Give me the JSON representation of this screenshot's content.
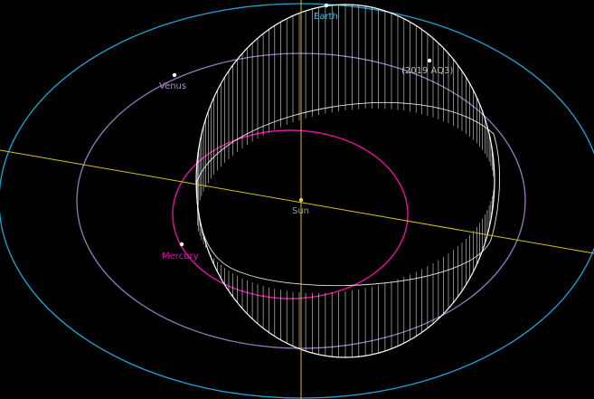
{
  "bodies": {
    "earth": {
      "label": "Earth",
      "color": "#5bb5e0"
    },
    "venus": {
      "label": "Venus",
      "color": "#b08ccf"
    },
    "mercury": {
      "label": "Mercury",
      "color": "#e0139b"
    },
    "sun": {
      "label": "Sun",
      "color": "#9a9a9a"
    },
    "asteroid": {
      "label": "(2019 AQ3)",
      "color": "#bdbdbd"
    }
  },
  "colors": {
    "background": "#000000",
    "earth_orbit": "#1fa3d6",
    "venus_orbit": "#9a77c0",
    "mercury_orbit": "#e0139b",
    "asteroid_orbit": "#ffffff",
    "axis": "#d4c21a",
    "sun_dot": "#f2d21a"
  }
}
